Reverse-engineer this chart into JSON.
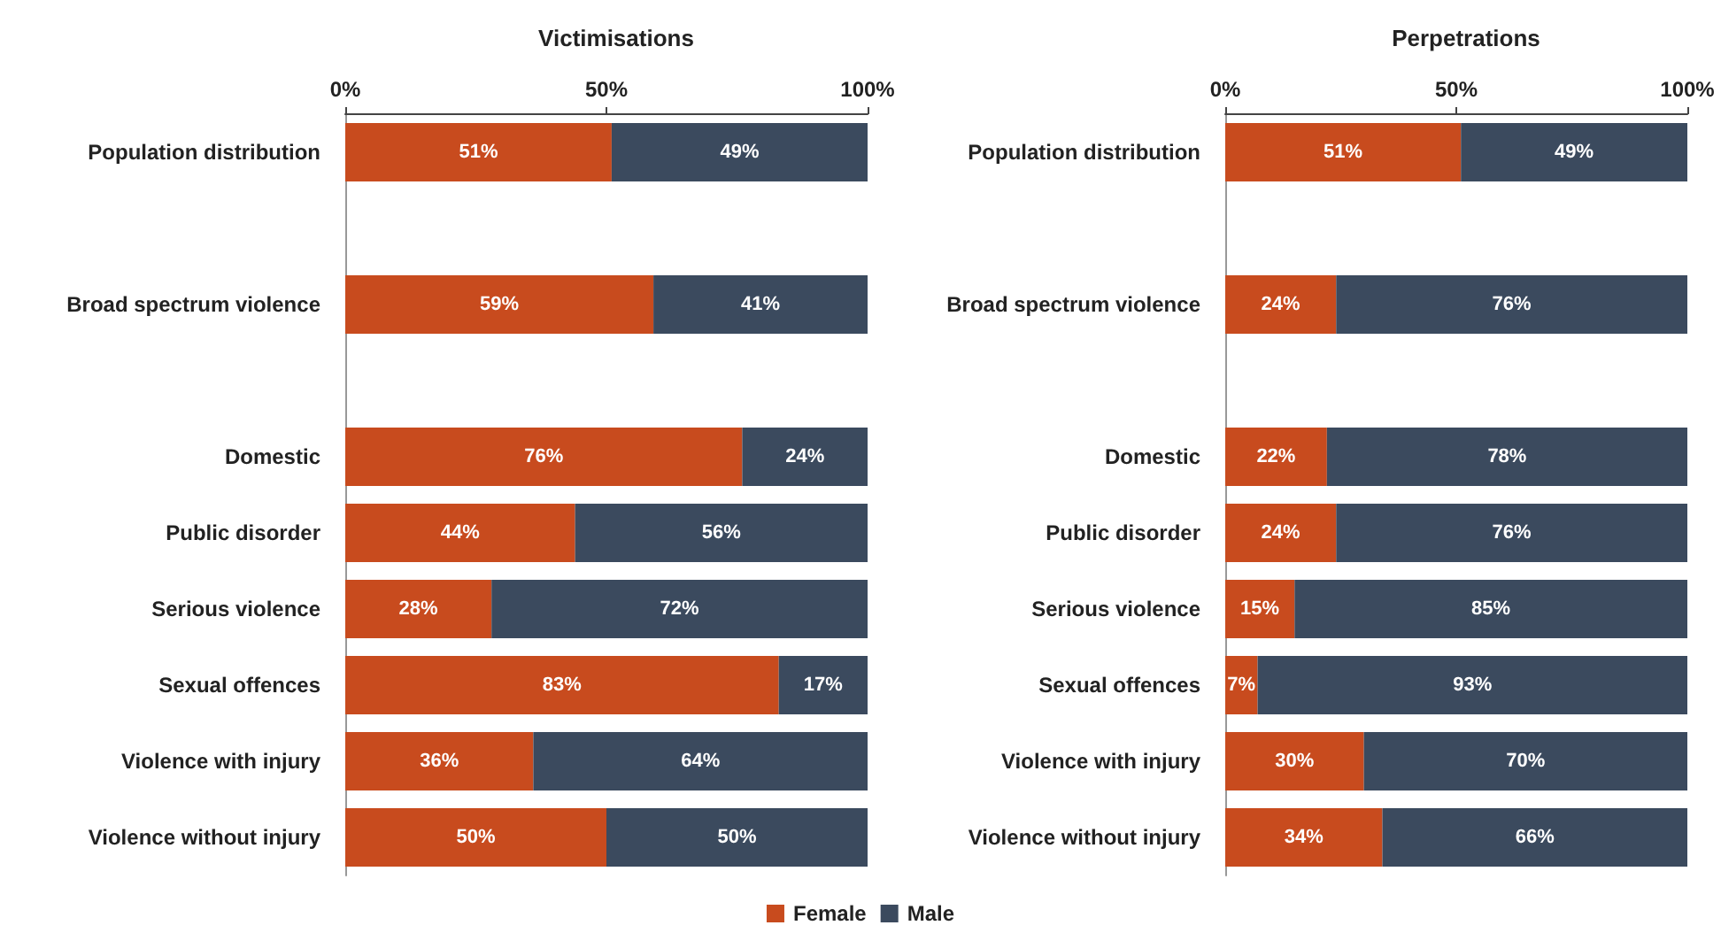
{
  "chart_data": [
    {
      "type": "bar",
      "title": "Victimisations",
      "orientation": "horizontal",
      "stacked": true,
      "legend": "bottom",
      "grid": false,
      "categories": [
        "Population distribution",
        null,
        "Broad spectrum violence",
        null,
        "Domestic",
        "Public disorder",
        "Serious violence",
        "Sexual offences",
        "Violence with injury",
        "Violence without injury"
      ],
      "xlim": [
        0,
        100
      ],
      "xticks": [
        {
          "value": 0,
          "label": "0%"
        },
        {
          "value": 50,
          "label": "50%"
        },
        {
          "value": 100,
          "label": "100%"
        }
      ],
      "series": [
        {
          "name": "Female",
          "color": "#c84b1e",
          "values": [
            51,
            null,
            59,
            null,
            76,
            44,
            28,
            83,
            36,
            50
          ],
          "value_labels": [
            "51%",
            null,
            "59%",
            null,
            "76%",
            "44%",
            "28%",
            "83%",
            "36%",
            "50%"
          ]
        },
        {
          "name": "Male",
          "color": "#3b4a5e",
          "values": [
            49,
            null,
            41,
            null,
            24,
            56,
            72,
            17,
            64,
            50
          ],
          "value_labels": [
            "49%",
            null,
            "41%",
            null,
            "24%",
            "56%",
            "72%",
            "17%",
            "64%",
            "50%"
          ]
        }
      ]
    },
    {
      "type": "bar",
      "title": "Perpetrations",
      "orientation": "horizontal",
      "stacked": true,
      "legend": false,
      "grid": false,
      "categories": [
        "Population distribution",
        null,
        "Broad spectrum violence",
        null,
        "Domestic",
        "Public disorder",
        "Serious violence",
        "Sexual offences",
        "Violence with injury",
        "Violence without injury"
      ],
      "xlim": [
        0,
        100
      ],
      "xticks": [
        {
          "value": 0,
          "label": "0%"
        },
        {
          "value": 50,
          "label": "50%"
        },
        {
          "value": 100,
          "label": "100%"
        }
      ],
      "series": [
        {
          "color": "#c84b1e",
          "values": [
            51,
            null,
            24,
            null,
            22,
            24,
            15,
            7,
            30,
            34
          ],
          "value_labels": [
            "51%",
            null,
            "24%",
            null,
            "22%",
            "24%",
            "15%",
            "7%",
            "30%",
            "34%"
          ]
        },
        {
          "color": "#3b4a5e",
          "values": [
            49,
            null,
            76,
            null,
            78,
            76,
            85,
            93,
            70,
            66
          ],
          "value_labels": [
            "49%",
            null,
            "76%",
            null,
            "78%",
            "76%",
            "85%",
            "93%",
            "70%",
            "66%"
          ]
        }
      ]
    }
  ]
}
